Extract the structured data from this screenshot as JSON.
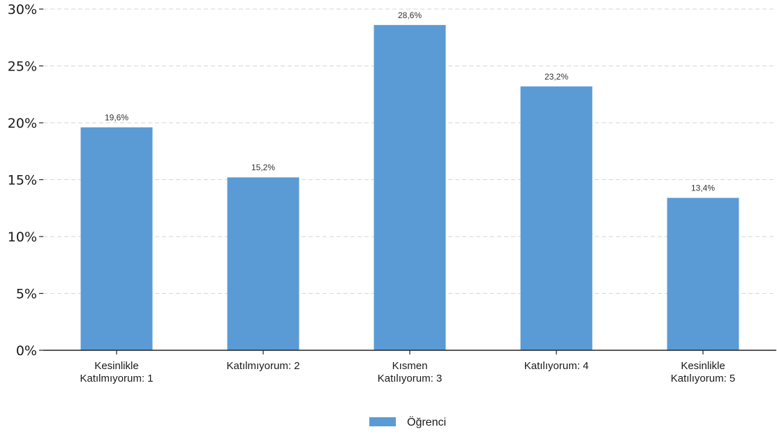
{
  "chart_data": {
    "type": "bar",
    "categories": [
      [
        "Kesinlikle",
        "Katılmıyorum: 1"
      ],
      [
        "Katılmıyorum: 2"
      ],
      [
        "Kısmen",
        "Katılıyorum: 3"
      ],
      [
        "Katılıyorum: 4"
      ],
      [
        "Kesinlikle",
        "Katılıyorum: 5"
      ]
    ],
    "series": [
      {
        "name": "Öğrenci",
        "values": [
          19.6,
          15.2,
          28.6,
          23.2,
          13.4
        ],
        "labels": [
          "19,6%",
          "15,2%",
          "28,6%",
          "23,2%",
          "13,4%"
        ],
        "color": "#5b9bd5"
      }
    ],
    "ylim": [
      0,
      30
    ],
    "yticks": [
      0,
      5,
      10,
      15,
      20,
      25,
      30
    ],
    "ytick_labels": [
      "0%",
      "5%",
      "10%",
      "15%",
      "20%",
      "25%",
      "30%"
    ],
    "grid": true,
    "legend_position": "bottom-center"
  }
}
